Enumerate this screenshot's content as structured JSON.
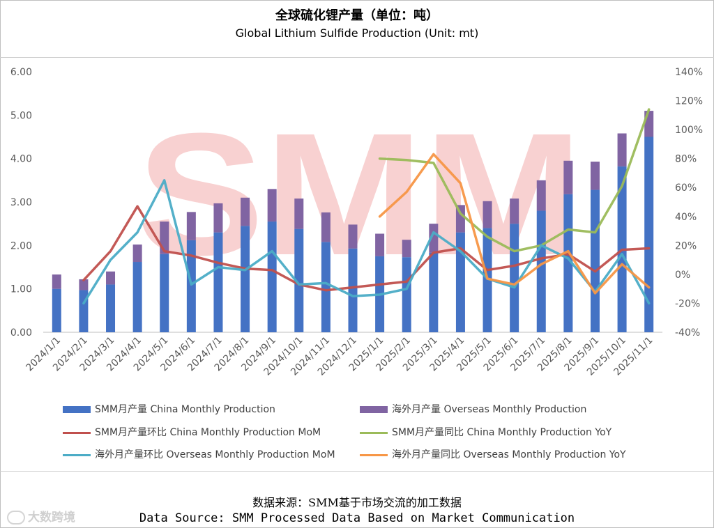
{
  "title_cn": "全球硫化锂产量（单位：吨）",
  "title_en": "Global Lithium Sulfide Production (Unit: mt)",
  "watermark": "SMM",
  "source_cn": "数据来源：SMM基于市场交流的加工数据",
  "source_en": "Data Source: SMM Processed Data Based on Market Communication",
  "corner_logo": "大数跨境",
  "chart_data": {
    "type": "bar",
    "categories": [
      "2024/1/1",
      "2024/2/1",
      "2024/3/1",
      "2024/4/1",
      "2024/5/1",
      "2024/6/1",
      "2024/7/1",
      "2024/8/1",
      "2024/9/1",
      "2024/10/1",
      "2024/11/1",
      "2024/12/1",
      "2025/1/1",
      "2025/2/1",
      "2025/3/1",
      "2025/4/1",
      "2025/5/1",
      "2025/6/1",
      "2025/7/1",
      "2025/8/1",
      "2025/9/1",
      "2025/10/1",
      "2025/11/1"
    ],
    "ylim": [
      0,
      6
    ],
    "yticks": [
      "0.00",
      "1.00",
      "2.00",
      "3.00",
      "4.00",
      "5.00",
      "6.00"
    ],
    "y2lim": [
      -40,
      140
    ],
    "y2ticks": [
      "-40%",
      "-20%",
      "0%",
      "20%",
      "40%",
      "60%",
      "80%",
      "100%",
      "120%",
      "140%"
    ],
    "colors": {
      "china": "#4472c4",
      "overseas": "#8064a2",
      "china_mom": "#c0504d",
      "china_yoy": "#9bbb59",
      "overseas_mom": "#4bacc6",
      "overseas_yoy": "#f79646"
    },
    "series": [
      {
        "name": "SMM月产量 China Monthly Production",
        "type": "bar",
        "axis": "left",
        "values": [
          1.0,
          0.97,
          1.1,
          1.62,
          1.8,
          2.12,
          2.3,
          2.45,
          2.55,
          2.38,
          2.08,
          1.93,
          1.75,
          1.73,
          1.83,
          2.3,
          2.4,
          2.5,
          2.8,
          3.18,
          3.28,
          3.82,
          4.5
        ]
      },
      {
        "name": "海外月产量 Overseas Monthly Production",
        "type": "bar",
        "axis": "left",
        "values": [
          0.33,
          0.25,
          0.3,
          0.4,
          0.75,
          0.65,
          0.67,
          0.65,
          0.75,
          0.7,
          0.68,
          0.55,
          0.52,
          0.4,
          0.67,
          0.63,
          0.62,
          0.58,
          0.7,
          0.77,
          0.65,
          0.76,
          0.6
        ]
      },
      {
        "name": "SMM月产量环比 China Monthly Production MoM",
        "type": "line",
        "axis": "right",
        "values": [
          null,
          -4,
          16,
          47,
          16,
          13,
          8,
          4,
          3,
          -7,
          -11,
          -9,
          -7,
          -5,
          15,
          18,
          3,
          6,
          11,
          14,
          2,
          17,
          18
        ]
      },
      {
        "name": "SMM月产量同比 China Monthly Production YoY",
        "type": "line",
        "axis": "right",
        "values": [
          null,
          null,
          null,
          null,
          null,
          null,
          null,
          null,
          null,
          null,
          null,
          null,
          80,
          79,
          77,
          42,
          26,
          16,
          20,
          31,
          29,
          61,
          114
        ]
      },
      {
        "name": "海外月产量环比 Overseas Monthly Production MoM",
        "type": "line",
        "axis": "right",
        "values": [
          null,
          -20,
          10,
          29,
          65,
          -7,
          5,
          3,
          16,
          -7,
          -6,
          -15,
          -14,
          -10,
          29,
          16,
          -3,
          -9,
          20,
          11,
          -12,
          14,
          -20
        ]
      },
      {
        "name": "海外月产量同比 Overseas Monthly Production YoY",
        "type": "line",
        "axis": "right",
        "values": [
          null,
          null,
          null,
          null,
          null,
          null,
          null,
          null,
          null,
          null,
          null,
          null,
          40,
          57,
          83,
          63,
          -3,
          -7,
          7,
          16,
          -13,
          7,
          -9
        ]
      }
    ]
  }
}
